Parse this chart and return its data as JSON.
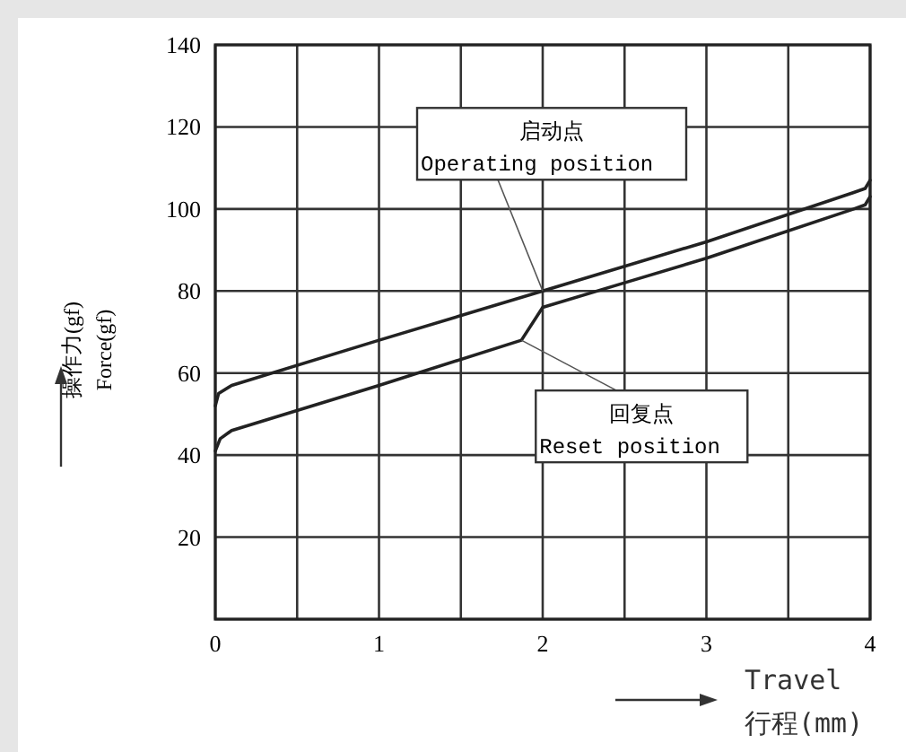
{
  "chart_data": {
    "type": "line",
    "xlabel": "Travel\n行程(mm)",
    "ylabel": "操作力(gf)\nForce(gf)",
    "xlim": [
      0,
      4
    ],
    "ylim": [
      0,
      140
    ],
    "xticks": [
      0,
      {
        "value": 0.5,
        "label": null
      },
      1,
      {
        "value": 1.5,
        "label": null
      },
      2,
      {
        "value": 2.5,
        "label": null
      },
      3,
      {
        "value": 3.5,
        "label": null
      },
      4
    ],
    "yticks": [
      {
        "value": 0,
        "label": null
      },
      20,
      40,
      60,
      80,
      100,
      120,
      140
    ],
    "grid": true,
    "marker": "none",
    "line_style": "solid",
    "series": [
      {
        "color": "#222222",
        "x": [
          0,
          0.02,
          0.1,
          1,
          2,
          3,
          3.9,
          3.97,
          4
        ],
        "values": [
          52,
          55,
          57,
          68,
          80,
          92,
          104,
          105,
          107
        ]
      },
      {
        "color": "#222222",
        "x": [
          0,
          0.03,
          0.1,
          1,
          1.87,
          2,
          2.5,
          3,
          3.9,
          3.97,
          4
        ],
        "values": [
          41,
          44,
          46,
          57,
          68,
          76,
          82,
          88,
          100,
          101,
          103
        ]
      }
    ],
    "annotations": [
      {
        "text": "启动点\nOperating position",
        "x": 2,
        "y": 80
      },
      {
        "text": "回复点\nReset position",
        "x": 1.87,
        "y": 68
      }
    ]
  }
}
